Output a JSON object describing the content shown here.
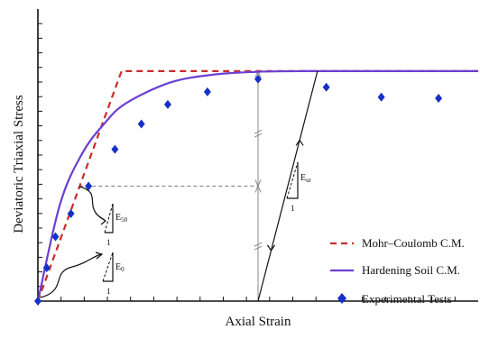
{
  "chart_data": {
    "type": "line",
    "xlabel": "Axial Strain",
    "ylabel": "Deviatoric Triaxial Stress",
    "series": [
      {
        "name": "Mohr–Coulomb C.M.",
        "style": "dashed",
        "color": "#cc2a2a",
        "x": [
          0,
          0.19,
          1.0
        ],
        "y": [
          0,
          1.0,
          1.0
        ]
      },
      {
        "name": "Hardening Soil C.M.",
        "style": "solid",
        "color": "#6a3fd1",
        "x": [
          0,
          0.05,
          0.1,
          0.15,
          0.2,
          0.3,
          0.4,
          0.5,
          0.6,
          0.8,
          1.0
        ],
        "y": [
          0,
          0.42,
          0.64,
          0.77,
          0.86,
          0.95,
          0.985,
          0.997,
          1.0,
          1.0,
          1.0
        ]
      },
      {
        "name": "Experimental Tests",
        "style": "markers",
        "color": "#1730c9",
        "x": [
          0,
          0.02,
          0.04,
          0.075,
          0.115,
          0.175,
          0.235,
          0.295,
          0.385,
          0.5,
          0.655,
          0.78,
          0.91
        ],
        "y": [
          0,
          0.145,
          0.28,
          0.38,
          0.5,
          0.66,
          0.77,
          0.855,
          0.91,
          0.965,
          0.93,
          0.887,
          0.882
        ]
      }
    ],
    "annotations": {
      "e0": "E",
      "e0_sub": "0",
      "e50": "E",
      "e50_sub": "50",
      "eur": "E",
      "eur_sub": "ur",
      "unit": "1"
    },
    "legend_position": "bottom-right",
    "xlim": [
      0,
      1
    ],
    "ylim": [
      0,
      1.27
    ],
    "x_ticks": 18,
    "y_ticks": 19,
    "grid": false
  }
}
